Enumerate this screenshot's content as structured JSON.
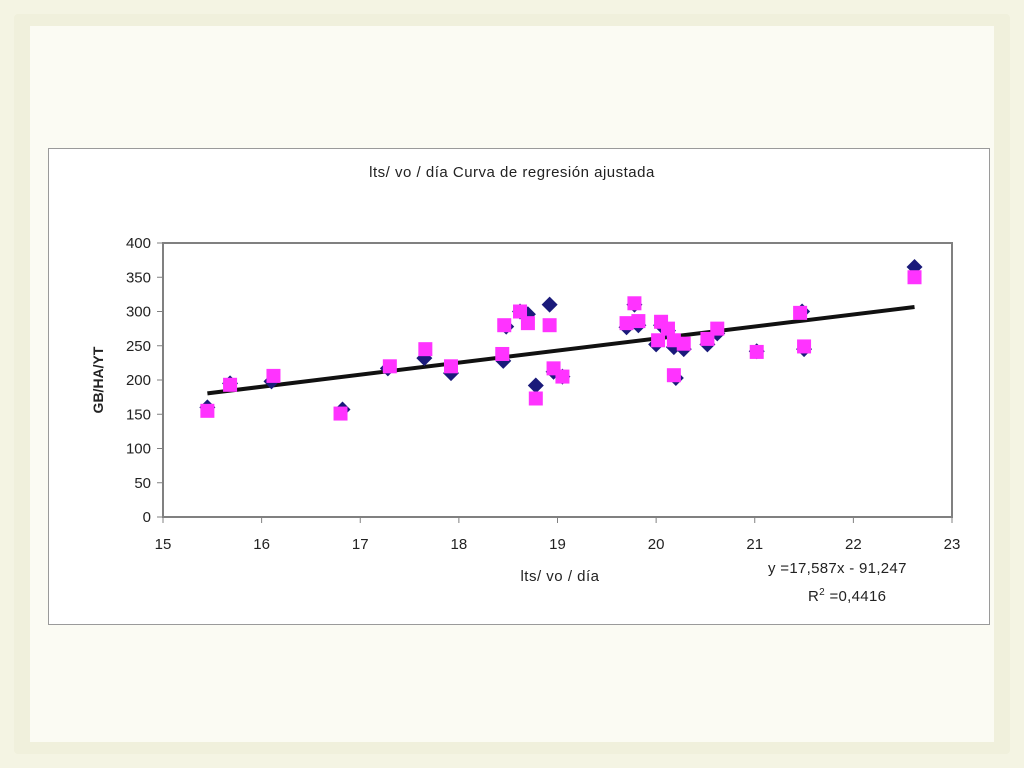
{
  "colors": {
    "page_background": "#f4f4e3",
    "series_1": "#1a1a7a",
    "series_2": "#ff33ff",
    "trendline": "#111111",
    "plot_border": "#808080"
  },
  "chart_data": {
    "type": "scatter",
    "title": "lts/ vo / día Curva de regresión ajustada",
    "xlabel": "lts/ vo / día",
    "ylabel": "GB/HA/YT",
    "xlim": [
      15,
      23
    ],
    "ylim": [
      0,
      400
    ],
    "x_ticks": [
      15,
      16,
      17,
      18,
      19,
      20,
      21,
      22,
      23
    ],
    "y_ticks": [
      0,
      50,
      100,
      150,
      200,
      250,
      300,
      350,
      400
    ],
    "grid": false,
    "legend": "none",
    "series": [
      {
        "marker": "diamond",
        "color": "#1a1a7a",
        "points": [
          [
            15.45,
            160
          ],
          [
            15.68,
            195
          ],
          [
            16.1,
            198
          ],
          [
            16.82,
            157
          ],
          [
            17.28,
            217
          ],
          [
            17.65,
            232
          ],
          [
            17.92,
            210
          ],
          [
            18.45,
            228
          ],
          [
            18.48,
            278
          ],
          [
            18.62,
            300
          ],
          [
            18.7,
            296
          ],
          [
            18.78,
            192
          ],
          [
            18.92,
            310
          ],
          [
            18.96,
            212
          ],
          [
            19.05,
            205
          ],
          [
            19.7,
            277
          ],
          [
            19.78,
            310
          ],
          [
            19.82,
            280
          ],
          [
            20.0,
            252
          ],
          [
            20.05,
            280
          ],
          [
            20.12,
            272
          ],
          [
            20.18,
            248
          ],
          [
            20.2,
            203
          ],
          [
            20.28,
            245
          ],
          [
            20.52,
            252
          ],
          [
            20.62,
            268
          ],
          [
            21.02,
            242
          ],
          [
            21.48,
            300
          ],
          [
            21.5,
            245
          ],
          [
            22.62,
            365
          ]
        ]
      },
      {
        "marker": "square",
        "color": "#ff33ff",
        "points": [
          [
            15.45,
            155
          ],
          [
            15.68,
            193
          ],
          [
            16.12,
            206
          ],
          [
            16.8,
            151
          ],
          [
            17.3,
            220
          ],
          [
            17.66,
            245
          ],
          [
            17.92,
            220
          ],
          [
            18.44,
            238
          ],
          [
            18.46,
            280
          ],
          [
            18.62,
            300
          ],
          [
            18.7,
            283
          ],
          [
            18.78,
            173
          ],
          [
            18.92,
            280
          ],
          [
            18.96,
            217
          ],
          [
            19.05,
            205
          ],
          [
            19.7,
            283
          ],
          [
            19.78,
            312
          ],
          [
            19.82,
            286
          ],
          [
            20.02,
            258
          ],
          [
            20.05,
            285
          ],
          [
            20.12,
            275
          ],
          [
            20.18,
            258
          ],
          [
            20.18,
            207
          ],
          [
            20.28,
            253
          ],
          [
            20.52,
            260
          ],
          [
            20.62,
            275
          ],
          [
            21.02,
            241
          ],
          [
            21.46,
            298
          ],
          [
            21.5,
            249
          ],
          [
            22.62,
            350
          ]
        ]
      }
    ],
    "trendline": {
      "type": "linear",
      "slope": 17.587,
      "intercept": -91.247,
      "x_range": [
        15.45,
        22.62
      ],
      "equation": "y =17,587x - 91,247",
      "r2_label": "R",
      "r2_sup": "2",
      "r2_value": "=0,4416"
    }
  }
}
